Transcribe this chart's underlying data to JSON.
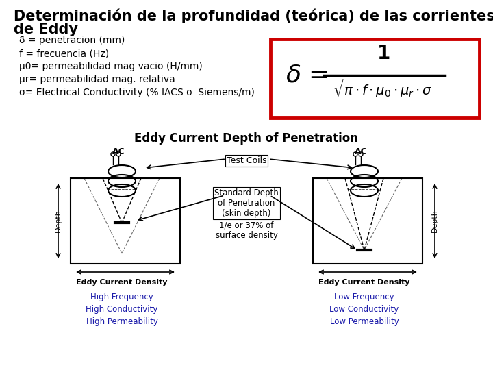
{
  "title_line1": "Determinación de la profundidad (teórica) de las corrientes",
  "title_line2": "de Eddy",
  "bullet1": "δ = penetracion (mm)",
  "bullet2": "f = frecuencia (Hz)",
  "bullet3": "μ0= permeabilidad mag vacio (H/mm)",
  "bullet4": "μr= permeabilidad mag. relativa",
  "bullet5": "σ= Electrical Conductivity (% IACS o  Siemens/m)",
  "box_color": "#cc0000",
  "freq_color": "#1a1aaa",
  "bg_color": "#ffffff",
  "text_color": "#000000",
  "title_fontsize": 15,
  "body_fontsize": 10,
  "diagram_title": "Eddy Current Depth of Penetration",
  "left_freq": "High Frequency\nHigh Conductivity\nHigh Permeability",
  "right_freq": "Low Frequency\nLow Conductivity\nLow Permeability"
}
